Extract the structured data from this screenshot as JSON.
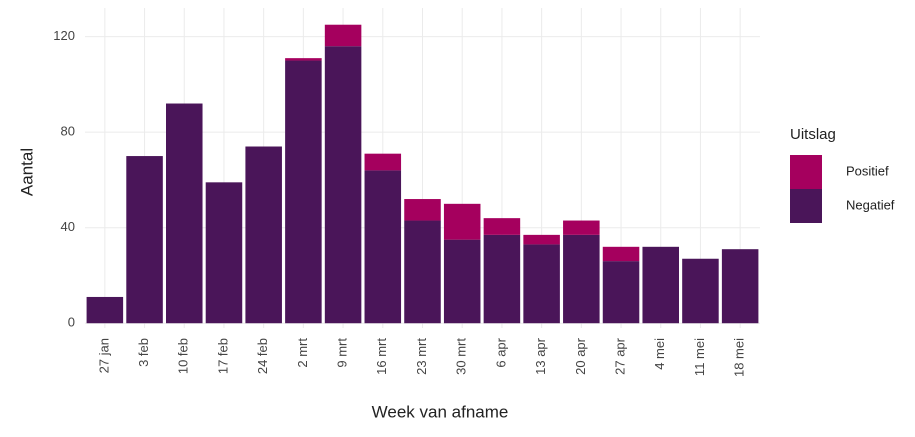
{
  "chart_data": {
    "type": "stacked-bar",
    "x_label": "Week van afname",
    "y_label": "Aantal",
    "legend_title": "Uitslag",
    "legend_position": "right",
    "categories": [
      "27 jan",
      "3 feb",
      "10 feb",
      "17 feb",
      "24 feb",
      "2 mrt",
      "9 mrt",
      "16 mrt",
      "23 mrt",
      "30 mrt",
      "6 apr",
      "13 apr",
      "20 apr",
      "27 apr",
      "4 mei",
      "11 mei",
      "18 mei"
    ],
    "series": [
      {
        "name": "Positief",
        "color": "#a5005e",
        "values": [
          0,
          0,
          0,
          0,
          0,
          1,
          9,
          7,
          9,
          15,
          7,
          4,
          6,
          6,
          0,
          0,
          0
        ]
      },
      {
        "name": "Negatief",
        "color": "#4a1559",
        "values": [
          11,
          70,
          92,
          59,
          74,
          110,
          116,
          64,
          43,
          35,
          37,
          33,
          37,
          26,
          32,
          27,
          31
        ]
      }
    ],
    "ylim": [
      -2,
      132
    ],
    "yticks": [
      0,
      40,
      80,
      120
    ],
    "grid": true
  }
}
